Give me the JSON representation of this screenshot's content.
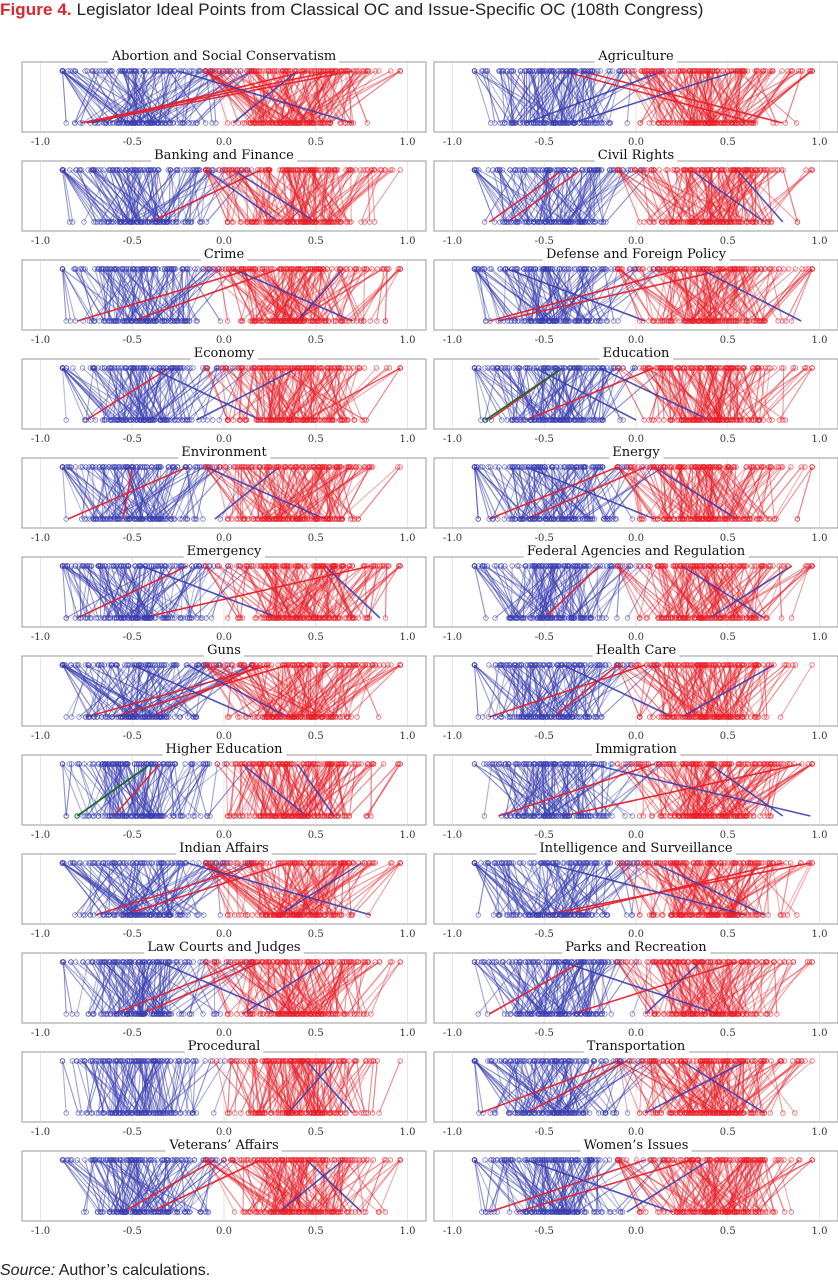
{
  "figure": {
    "label": "Figure 4.",
    "title": "Legislator Ideal Points from Classical OC and Issue-Specific OC (108th Congress)"
  },
  "source": {
    "label": "Source:",
    "text": "Author’s calculations."
  },
  "colors": {
    "democrat": "#3a3fb0",
    "republican": "#e8202a",
    "highlight": "#1b6b2a",
    "frame": "#9a9a9a",
    "grid": "#e6e6e6"
  },
  "chart_data": {
    "type": "line",
    "description_kind": "slopegraph small multiples: each line joins a legislator's issue-specific OC ideal point (top row) to the classical OC ideal point (bottom row)",
    "xlim": [
      -1.05,
      1.05
    ],
    "xticks": [
      "-1.0",
      "-0.5",
      "0.0",
      "0.5",
      "1.0"
    ],
    "tick_values": [
      -1.0,
      -0.5,
      0.0,
      0.5,
      1.0
    ],
    "grid": true,
    "series_colors": {
      "left_group": "#3a3fb0",
      "right_group": "#e8202a"
    },
    "panels": [
      {
        "title": "Abortion and Social Conservatism",
        "spread": 0.3,
        "cross_out": [
          [
            -0.75,
            0.7
          ],
          [
            -0.78,
            0.6
          ],
          [
            -0.72,
            0.45
          ]
        ],
        "cross_in": [
          [
            0.7,
            -0.25
          ],
          [
            0.05,
            0.4
          ]
        ],
        "highlight": []
      },
      {
        "title": "Agriculture",
        "spread": 0.2,
        "cross_out": [
          [
            0.8,
            -0.3
          ],
          [
            0.65,
            -0.4
          ]
        ],
        "cross_in": [
          [
            -0.35,
            0.55
          ],
          [
            -0.6,
            0.15
          ]
        ],
        "highlight": []
      },
      {
        "title": "Banking and Finance",
        "spread": 0.18,
        "cross_out": [
          [
            -0.4,
            0.2
          ]
        ],
        "cross_in": [
          [
            0.3,
            -0.1
          ],
          [
            0.5,
            0.05
          ]
        ],
        "highlight": []
      },
      {
        "title": "Civil Rights",
        "spread": 0.22,
        "cross_out": [
          [
            -0.8,
            -0.4
          ],
          [
            -0.7,
            -0.3
          ]
        ],
        "cross_in": [
          [
            0.7,
            0.3
          ],
          [
            0.8,
            0.55
          ]
        ],
        "highlight": []
      },
      {
        "title": "Crime",
        "spread": 0.2,
        "cross_out": [
          [
            -0.8,
            0.15
          ],
          [
            -0.5,
            0.3
          ]
        ],
        "cross_in": [
          [
            0.7,
            0.05
          ],
          [
            0.4,
            0.65
          ]
        ],
        "highlight": []
      },
      {
        "title": "Defense and Foreign Policy",
        "spread": 0.2,
        "cross_out": [
          [
            -0.75,
            0.5
          ],
          [
            -0.8,
            0.25
          ]
        ],
        "cross_in": [
          [
            0.05,
            -0.7
          ],
          [
            0.9,
            0.35
          ]
        ],
        "highlight": []
      },
      {
        "title": "Economy",
        "spread": 0.2,
        "cross_out": [
          [
            -0.75,
            -0.3
          ]
        ],
        "cross_in": [
          [
            -0.15,
            0.4
          ],
          [
            0.2,
            -0.4
          ]
        ],
        "highlight": []
      },
      {
        "title": "Education",
        "spread": 0.18,
        "cross_out": [
          [
            -0.8,
            -0.4
          ],
          [
            -0.6,
            0.1
          ]
        ],
        "cross_in": [
          [
            0.0,
            -0.55
          ],
          [
            0.4,
            -0.2
          ]
        ],
        "highlight": [
          [
            -0.82,
            -0.4
          ]
        ]
      },
      {
        "title": "Environment",
        "spread": 0.2,
        "cross_out": [
          [
            -0.85,
            -0.2
          ],
          [
            -0.55,
            -0.5
          ]
        ],
        "cross_in": [
          [
            0.55,
            -0.1
          ],
          [
            -0.05,
            0.3
          ]
        ],
        "highlight": []
      },
      {
        "title": "Energy",
        "spread": 0.2,
        "cross_out": [
          [
            -0.8,
            -0.1
          ],
          [
            -0.6,
            0.05
          ]
        ],
        "cross_in": [
          [
            0.1,
            -0.6
          ],
          [
            0.55,
            0.1
          ]
        ],
        "highlight": []
      },
      {
        "title": "Emergency",
        "spread": 0.2,
        "cross_out": [
          [
            -0.8,
            -0.2
          ],
          [
            -0.45,
            0.8
          ]
        ],
        "cross_in": [
          [
            0.3,
            -0.45
          ],
          [
            0.85,
            0.55
          ]
        ],
        "highlight": []
      },
      {
        "title": "Federal Agencies and Regulation",
        "spread": 0.2,
        "cross_out": [
          [
            -0.5,
            -0.2
          ]
        ],
        "cross_in": [
          [
            0.7,
            0.25
          ],
          [
            0.4,
            0.85
          ]
        ],
        "highlight": []
      },
      {
        "title": "Guns",
        "spread": 0.3,
        "cross_out": [
          [
            -0.75,
            0.25
          ],
          [
            -0.6,
            0.35
          ],
          [
            -0.4,
            0.2
          ]
        ],
        "cross_in": [
          [
            0.15,
            -0.5
          ],
          [
            0.35,
            -0.2
          ]
        ],
        "highlight": []
      },
      {
        "title": "Health Care",
        "spread": 0.2,
        "cross_out": [
          [
            -0.8,
            0.05
          ],
          [
            -0.45,
            -0.1
          ]
        ],
        "cross_in": [
          [
            0.2,
            -0.4
          ],
          [
            0.25,
            0.75
          ]
        ],
        "highlight": []
      },
      {
        "title": "Higher Education",
        "spread": 0.15,
        "cross_out": [
          [
            -0.6,
            -0.35
          ]
        ],
        "cross_in": [
          [
            0.6,
            0.4
          ],
          [
            0.45,
            0.1
          ]
        ],
        "highlight": [
          [
            -0.8,
            -0.4
          ]
        ]
      },
      {
        "title": "Immigration",
        "spread": 0.22,
        "cross_out": [
          [
            -0.75,
            0.1
          ],
          [
            -0.4,
            0.9
          ]
        ],
        "cross_in": [
          [
            0.95,
            -0.25
          ],
          [
            0.8,
            0.4
          ]
        ],
        "highlight": []
      },
      {
        "title": "Indian Affairs",
        "spread": 0.28,
        "cross_out": [
          [
            -0.7,
            0.2
          ],
          [
            -0.55,
            0.35
          ]
        ],
        "cross_in": [
          [
            0.8,
            -0.2
          ],
          [
            0.3,
            0.75
          ]
        ],
        "highlight": []
      },
      {
        "title": "Intelligence and Surveillance",
        "spread": 0.22,
        "cross_out": [
          [
            -0.5,
            0.95
          ],
          [
            -0.4,
            0.8
          ]
        ],
        "cross_in": [
          [
            0.6,
            -0.5
          ],
          [
            0.7,
            0.1
          ]
        ],
        "highlight": []
      },
      {
        "title": "Law Courts and Judges",
        "spread": 0.2,
        "cross_out": [
          [
            -0.6,
            0.1
          ],
          [
            -0.45,
            0.2
          ]
        ],
        "cross_in": [
          [
            0.3,
            -0.35
          ],
          [
            0.1,
            0.55
          ]
        ],
        "highlight": []
      },
      {
        "title": "Parks and Recreation",
        "spread": 0.2,
        "cross_out": [
          [
            -0.8,
            -0.3
          ],
          [
            -0.35,
            0.55
          ]
        ],
        "cross_in": [
          [
            0.45,
            -0.4
          ],
          [
            0.05,
            0.35
          ]
        ],
        "highlight": []
      },
      {
        "title": "Procedural",
        "spread": 0.12,
        "cross_out": [],
        "cross_in": [
          [
            0.35,
            0.6
          ],
          [
            0.7,
            0.45
          ]
        ],
        "highlight": []
      },
      {
        "title": "Transportation",
        "spread": 0.2,
        "cross_out": [
          [
            -0.85,
            -0.1
          ],
          [
            -0.6,
            -0.05
          ]
        ],
        "cross_in": [
          [
            0.05,
            0.6
          ],
          [
            0.7,
            0.25
          ]
        ],
        "highlight": []
      },
      {
        "title": "Veterans’ Affairs",
        "spread": 0.22,
        "cross_out": [
          [
            -0.55,
            -0.05
          ],
          [
            -0.4,
            0.2
          ]
        ],
        "cross_in": [
          [
            0.3,
            0.65
          ],
          [
            0.75,
            0.45
          ]
        ],
        "highlight": []
      },
      {
        "title": "Women’s Issues",
        "spread": 0.22,
        "cross_out": [
          [
            -0.8,
            0.05
          ],
          [
            -0.65,
            0.3
          ]
        ],
        "cross_in": [
          [
            0.2,
            -0.6
          ],
          [
            -0.05,
            0.4
          ]
        ],
        "highlight": []
      }
    ]
  }
}
